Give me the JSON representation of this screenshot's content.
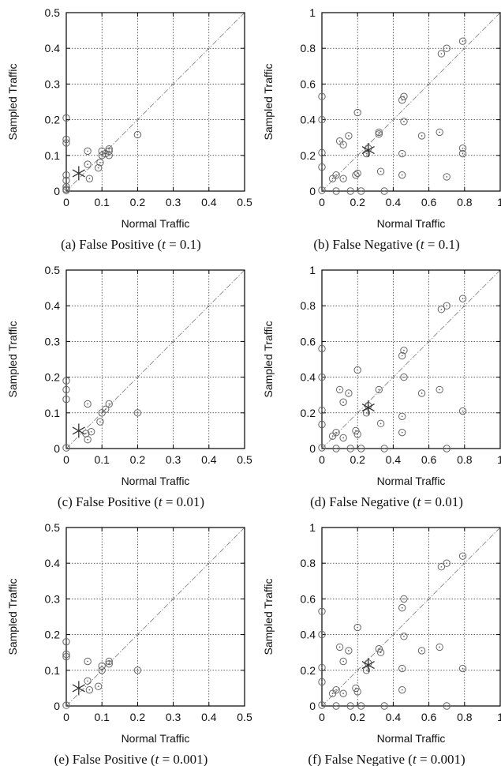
{
  "chart_data": [
    {
      "type": "scatter",
      "caption_prefix": "(a) False Positive (",
      "caption_var": "t",
      "caption_suffix": " = 0.1)",
      "xlabel": "Normal Traffic",
      "ylabel": "Sampled Traffic",
      "xlim": [
        0,
        0.5
      ],
      "ylim": [
        0,
        0.5
      ],
      "xticks": [
        "0",
        "0.1",
        "0.2",
        "0.3",
        "0.4",
        "0.5"
      ],
      "yticks": [
        "0",
        "0.1",
        "0.2",
        "0.3",
        "0.4",
        "0.5"
      ],
      "grid": true,
      "diagonal": true,
      "points": [
        [
          0,
          0.205
        ],
        [
          0,
          0.145
        ],
        [
          0,
          0.135
        ],
        [
          0,
          0.045
        ],
        [
          0,
          0.03
        ],
        [
          0,
          0.012
        ],
        [
          0,
          0.005
        ],
        [
          0,
          0.002
        ],
        [
          0.06,
          0.112
        ],
        [
          0.06,
          0.075
        ],
        [
          0.065,
          0.035
        ],
        [
          0.09,
          0.065
        ],
        [
          0.095,
          0.08
        ],
        [
          0.1,
          0.1
        ],
        [
          0.1,
          0.112
        ],
        [
          0.11,
          0.105
        ],
        [
          0.12,
          0.1
        ],
        [
          0.12,
          0.112
        ],
        [
          0.12,
          0.118
        ],
        [
          0.2,
          0.158
        ]
      ],
      "marker": [
        0.035,
        0.05
      ]
    },
    {
      "type": "scatter",
      "caption_prefix": "(b) False Negative (",
      "caption_var": "t",
      "caption_suffix": " = 0.1)",
      "xlabel": "Normal Traffic",
      "ylabel": "Sampled Traffic",
      "xlim": [
        0,
        1
      ],
      "ylim": [
        0,
        1
      ],
      "xticks": [
        "0",
        "0.2",
        "0.4",
        "0.6",
        "0.8",
        "1"
      ],
      "yticks": [
        "0",
        "0.2",
        "0.4",
        "0.6",
        "0.8",
        "1"
      ],
      "grid": true,
      "diagonal": true,
      "points": [
        [
          0,
          0.53
        ],
        [
          0,
          0.4
        ],
        [
          0,
          0.215
        ],
        [
          0,
          0.135
        ],
        [
          0,
          0.005
        ],
        [
          0.06,
          0.07
        ],
        [
          0.08,
          0.09
        ],
        [
          0.1,
          0.28
        ],
        [
          0.12,
          0.26
        ],
        [
          0.15,
          0.31
        ],
        [
          0.12,
          0.07
        ],
        [
          0.2,
          0.44
        ],
        [
          0.2,
          0.1
        ],
        [
          0.19,
          0.09
        ],
        [
          0.25,
          0.21
        ],
        [
          0.26,
          0.24
        ],
        [
          0.32,
          0.33
        ],
        [
          0.32,
          0.32
        ],
        [
          0.33,
          0.11
        ],
        [
          0.45,
          0.51
        ],
        [
          0.46,
          0.53
        ],
        [
          0.46,
          0.39
        ],
        [
          0.45,
          0.21
        ],
        [
          0.45,
          0.09
        ],
        [
          0.56,
          0.31
        ],
        [
          0.66,
          0.33
        ],
        [
          0.67,
          0.77
        ],
        [
          0.7,
          0.8
        ],
        [
          0.79,
          0.84
        ],
        [
          0.79,
          0.24
        ],
        [
          0.79,
          0.21
        ],
        [
          0.7,
          0.08
        ],
        [
          0.08,
          0.0
        ],
        [
          0.16,
          0.0
        ],
        [
          0.22,
          0.0
        ],
        [
          0.35,
          0.0
        ]
      ],
      "marker": [
        0.26,
        0.23
      ]
    },
    {
      "type": "scatter",
      "caption_prefix": "(c) False Positive (",
      "caption_var": "t",
      "caption_suffix": " = 0.01)",
      "xlabel": "Normal Traffic",
      "ylabel": "Sampled Traffic",
      "xlim": [
        0,
        0.5
      ],
      "ylim": [
        0,
        0.5
      ],
      "xticks": [
        "0",
        "0.1",
        "0.2",
        "0.3",
        "0.4",
        "0.5"
      ],
      "yticks": [
        "0",
        "0.1",
        "0.2",
        "0.3",
        "0.4",
        "0.5"
      ],
      "grid": true,
      "diagonal": true,
      "points": [
        [
          0,
          0.19
        ],
        [
          0,
          0.165
        ],
        [
          0,
          0.138
        ],
        [
          0,
          0.002
        ],
        [
          0.06,
          0.125
        ],
        [
          0.055,
          0.042
        ],
        [
          0.06,
          0.025
        ],
        [
          0.07,
          0.047
        ],
        [
          0.095,
          0.075
        ],
        [
          0.1,
          0.1
        ],
        [
          0.11,
          0.11
        ],
        [
          0.12,
          0.125
        ],
        [
          0.2,
          0.1
        ]
      ],
      "marker": [
        0.035,
        0.05
      ]
    },
    {
      "type": "scatter",
      "caption_prefix": "(d) False Negative (",
      "caption_var": "t",
      "caption_suffix": " = 0.01)",
      "xlabel": "Normal Traffic",
      "ylabel": "Sampled Traffic",
      "xlim": [
        0,
        1
      ],
      "ylim": [
        0,
        1
      ],
      "xticks": [
        "0",
        "0.2",
        "0.4",
        "0.6",
        "0.8",
        "1"
      ],
      "yticks": [
        "0",
        "0.2",
        "0.4",
        "0.6",
        "0.8",
        "1"
      ],
      "grid": true,
      "diagonal": true,
      "points": [
        [
          0,
          0.56
        ],
        [
          0,
          0.4
        ],
        [
          0,
          0.215
        ],
        [
          0,
          0.135
        ],
        [
          0,
          0.005
        ],
        [
          0.06,
          0.07
        ],
        [
          0.08,
          0.09
        ],
        [
          0.1,
          0.33
        ],
        [
          0.15,
          0.31
        ],
        [
          0.12,
          0.26
        ],
        [
          0.12,
          0.06
        ],
        [
          0.2,
          0.44
        ],
        [
          0.19,
          0.1
        ],
        [
          0.2,
          0.08
        ],
        [
          0.25,
          0.2
        ],
        [
          0.26,
          0.24
        ],
        [
          0.32,
          0.33
        ],
        [
          0.33,
          0.14
        ],
        [
          0.45,
          0.52
        ],
        [
          0.46,
          0.55
        ],
        [
          0.46,
          0.4
        ],
        [
          0.45,
          0.18
        ],
        [
          0.45,
          0.09
        ],
        [
          0.56,
          0.31
        ],
        [
          0.66,
          0.33
        ],
        [
          0.67,
          0.78
        ],
        [
          0.7,
          0.8
        ],
        [
          0.79,
          0.84
        ],
        [
          0.79,
          0.21
        ],
        [
          0.7,
          0.0
        ],
        [
          0.08,
          0.0
        ],
        [
          0.16,
          0.0
        ],
        [
          0.22,
          0.0
        ],
        [
          0.35,
          0.0
        ]
      ],
      "marker": [
        0.26,
        0.23
      ]
    },
    {
      "type": "scatter",
      "caption_prefix": "(e) False Positive (",
      "caption_var": "t",
      "caption_suffix": " = 0.001)",
      "xlabel": "Normal Traffic",
      "ylabel": "Sampled Traffic",
      "xlim": [
        0,
        0.5
      ],
      "ylim": [
        0,
        0.5
      ],
      "xticks": [
        "0",
        "0.1",
        "0.2",
        "0.3",
        "0.4",
        "0.5"
      ],
      "yticks": [
        "0",
        "0.1",
        "0.2",
        "0.3",
        "0.4",
        "0.5"
      ],
      "grid": true,
      "diagonal": true,
      "points": [
        [
          0,
          0.18
        ],
        [
          0,
          0.145
        ],
        [
          0,
          0.138
        ],
        [
          0,
          0.002
        ],
        [
          0.06,
          0.125
        ],
        [
          0.06,
          0.07
        ],
        [
          0.065,
          0.045
        ],
        [
          0.09,
          0.055
        ],
        [
          0.1,
          0.1
        ],
        [
          0.1,
          0.112
        ],
        [
          0.12,
          0.118
        ],
        [
          0.12,
          0.125
        ],
        [
          0.2,
          0.1
        ]
      ],
      "marker": [
        0.035,
        0.05
      ]
    },
    {
      "type": "scatter",
      "caption_prefix": "(f) False Negative (",
      "caption_var": "t",
      "caption_suffix": " = 0.001)",
      "xlabel": "Normal Traffic",
      "ylabel": "Sampled Traffic",
      "xlim": [
        0,
        1
      ],
      "ylim": [
        0,
        1
      ],
      "xticks": [
        "0",
        "0.2",
        "0.4",
        "0.6",
        "0.8",
        "1"
      ],
      "yticks": [
        "0",
        "0.2",
        "0.4",
        "0.6",
        "0.8",
        "1"
      ],
      "grid": true,
      "diagonal": true,
      "points": [
        [
          0,
          0.53
        ],
        [
          0,
          0.4
        ],
        [
          0,
          0.215
        ],
        [
          0,
          0.135
        ],
        [
          0,
          0.005
        ],
        [
          0.06,
          0.07
        ],
        [
          0.08,
          0.09
        ],
        [
          0.1,
          0.33
        ],
        [
          0.15,
          0.31
        ],
        [
          0.12,
          0.25
        ],
        [
          0.12,
          0.07
        ],
        [
          0.2,
          0.44
        ],
        [
          0.19,
          0.1
        ],
        [
          0.2,
          0.08
        ],
        [
          0.25,
          0.2
        ],
        [
          0.26,
          0.24
        ],
        [
          0.32,
          0.32
        ],
        [
          0.33,
          0.3
        ],
        [
          0.45,
          0.55
        ],
        [
          0.46,
          0.6
        ],
        [
          0.46,
          0.39
        ],
        [
          0.45,
          0.21
        ],
        [
          0.45,
          0.09
        ],
        [
          0.56,
          0.31
        ],
        [
          0.66,
          0.33
        ],
        [
          0.67,
          0.78
        ],
        [
          0.7,
          0.8
        ],
        [
          0.79,
          0.84
        ],
        [
          0.79,
          0.21
        ],
        [
          0.7,
          0.0
        ],
        [
          0.08,
          0.0
        ],
        [
          0.16,
          0.0
        ],
        [
          0.22,
          0.0
        ],
        [
          0.35,
          0.0
        ]
      ],
      "marker": [
        0.26,
        0.23
      ]
    }
  ]
}
